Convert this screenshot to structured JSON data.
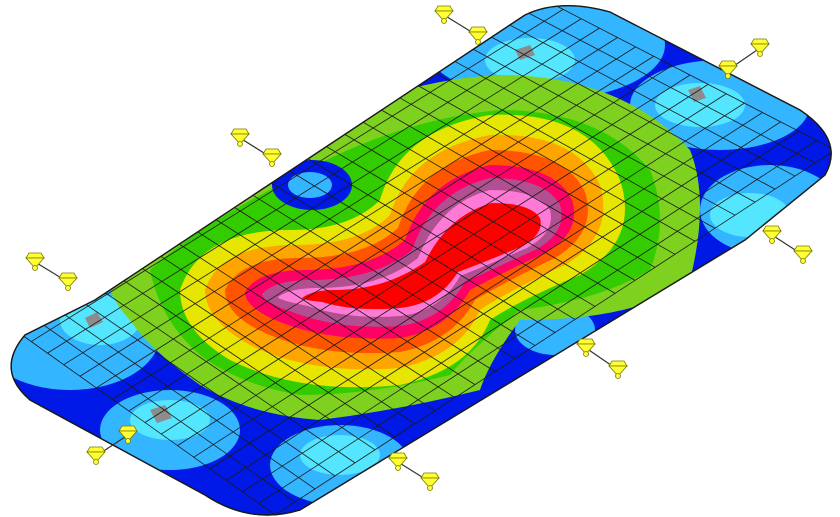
{
  "view": {
    "background": "#ffffff",
    "mesh_color": "#1a1a1a",
    "support_color": "#ffff33",
    "support_outline": "#7a7a00"
  },
  "plate": {
    "shape": "rounded-rectangular-slab",
    "mesh_divisions": [
      28,
      16
    ],
    "contour_palette": [
      "#0019e6",
      "#33b5ff",
      "#55e6ff",
      "#7ed11e",
      "#33cc00",
      "#e6e600",
      "#ffa500",
      "#ff5500",
      "#ff0066",
      "#b05090",
      "#ff7ad6",
      "#ff0000"
    ]
  },
  "supports": [
    {
      "name": "support-top-center"
    },
    {
      "name": "support-top-right"
    },
    {
      "name": "support-upper-left"
    },
    {
      "name": "support-left"
    },
    {
      "name": "support-right"
    },
    {
      "name": "support-center-right"
    },
    {
      "name": "support-bottom-left"
    },
    {
      "name": "support-bottom-center"
    }
  ]
}
